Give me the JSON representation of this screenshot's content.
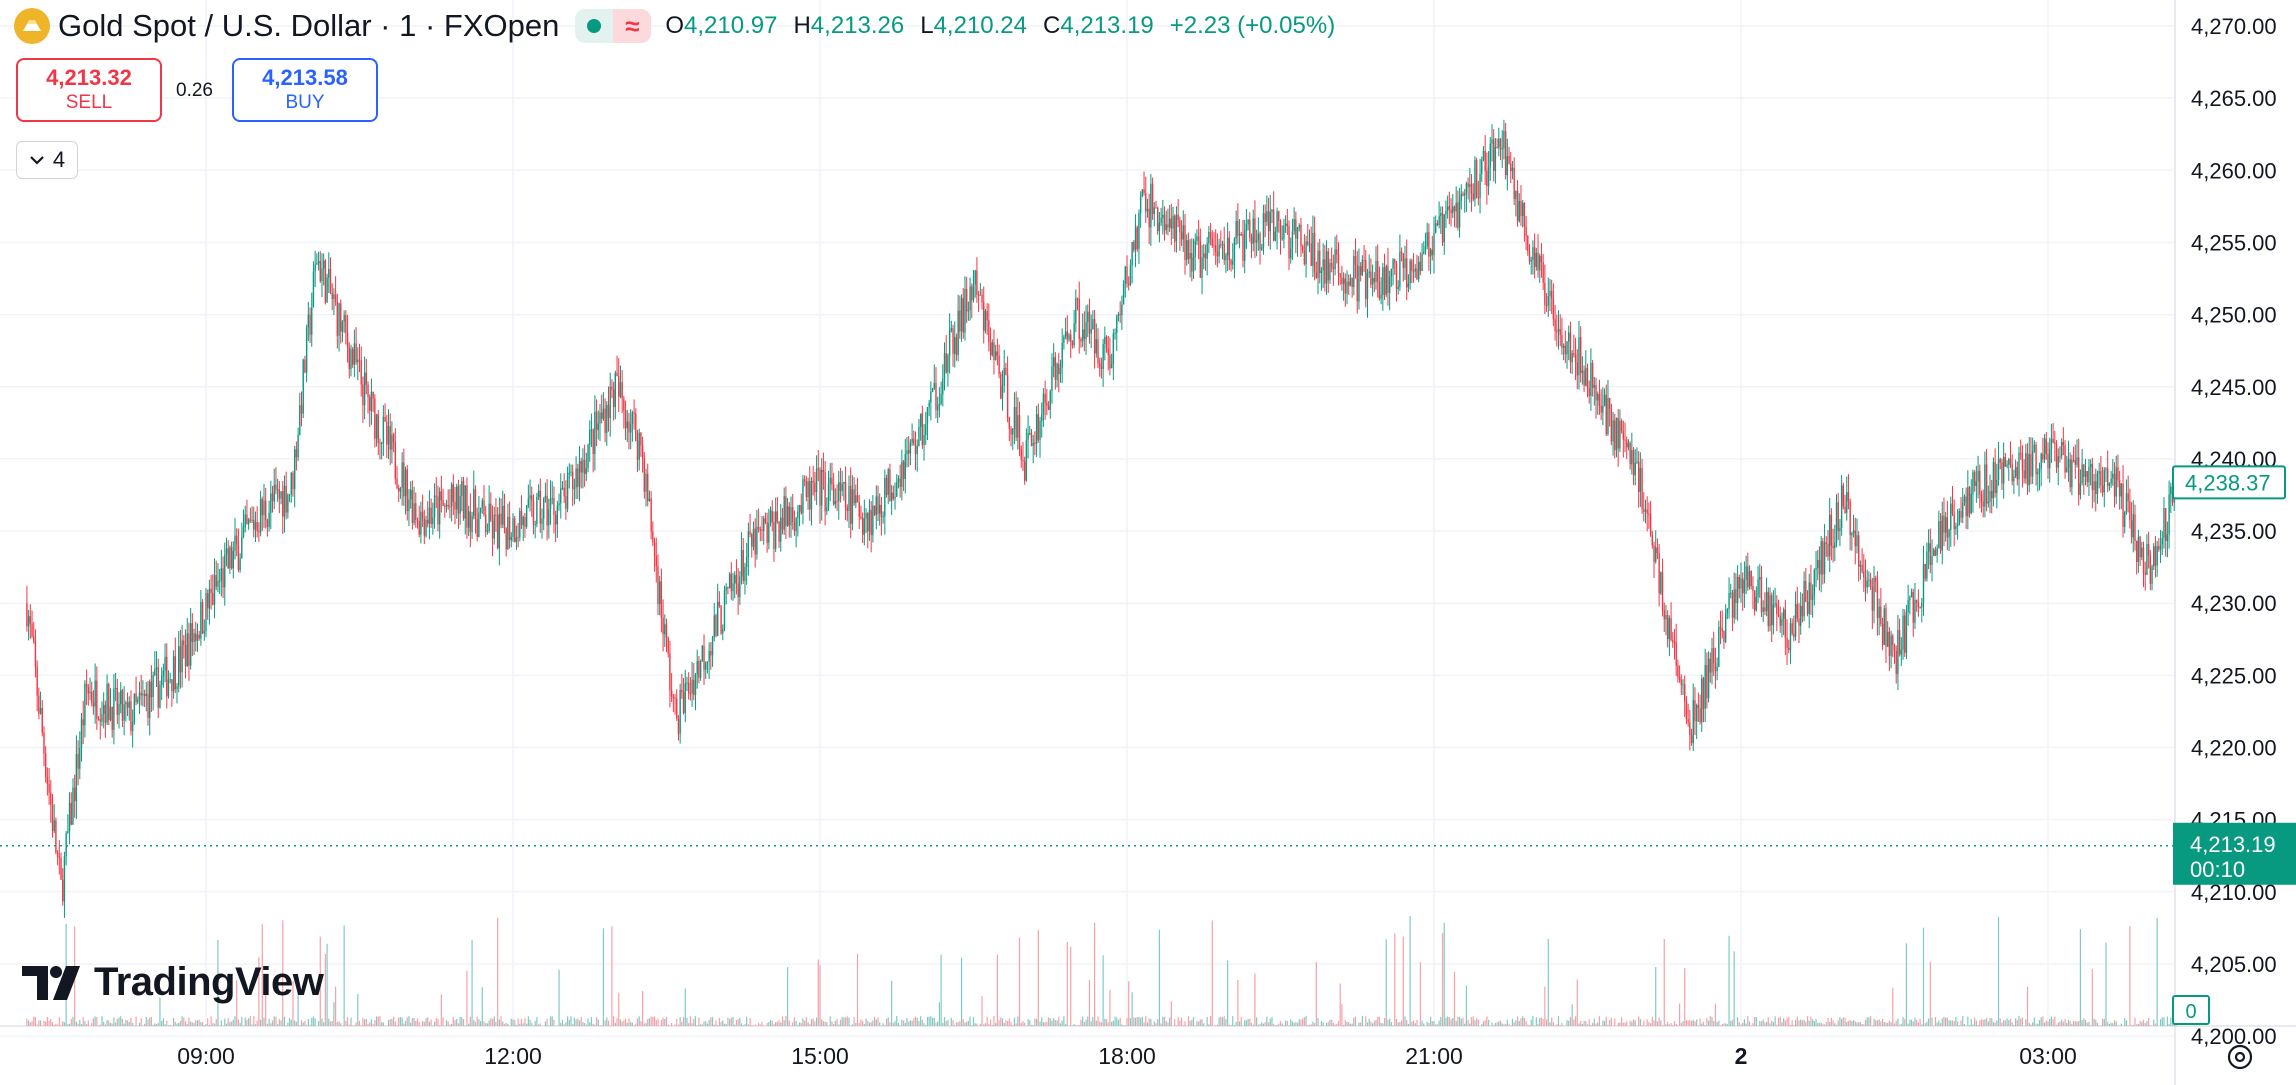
{
  "header": {
    "symbol_title": "Gold Spot / U.S. Dollar · 1 · FXOpen",
    "ohlc": [
      {
        "label": "O",
        "value": "4,210.97"
      },
      {
        "label": "H",
        "value": "4,213.26"
      },
      {
        "label": "L",
        "value": "4,210.24"
      },
      {
        "label": "C",
        "value": "4,213.19"
      }
    ],
    "change": "+2.23 (+0.05%)"
  },
  "trade": {
    "sell_price": "4,213.32",
    "sell_label": "SELL",
    "spread": "0.26",
    "buy_price": "4,213.58",
    "buy_label": "BUY"
  },
  "indicators_count": "4",
  "brand": "TradingView",
  "price_tags": {
    "current": "4,213.19",
    "countdown": "00:10",
    "crosshair": "4,238.37",
    "volume": "0"
  },
  "colors": {
    "up": "#089981",
    "down": "#f23645",
    "volume_up": "#80cbc4",
    "volume_down": "#f7a1a7",
    "grid": "#f0f3fa",
    "axis_text": "#131722"
  },
  "chart_data": {
    "type": "candlestick",
    "title": "Gold Spot / U.S. Dollar · 1 · FXOpen",
    "y_axis": {
      "ticks": [
        "4,200.00",
        "4,205.00",
        "4,210.00",
        "4,215.00",
        "4,220.00",
        "4,225.00",
        "4,230.00",
        "4,235.00",
        "4,240.00",
        "4,245.00",
        "4,250.00",
        "4,255.00",
        "4,260.00",
        "4,265.00",
        "4,270.00"
      ],
      "range": [
        4200,
        4270
      ]
    },
    "x_axis": {
      "ticks": [
        "09:00",
        "12:00",
        "15:00",
        "18:00",
        "21:00",
        "2",
        "03:00"
      ]
    },
    "grid": true,
    "approx_path": {
      "x": [
        "07:15",
        "07:35",
        "07:50",
        "08:15",
        "08:45",
        "09:10",
        "09:30",
        "09:50",
        "10:05",
        "10:35",
        "11:05",
        "11:30",
        "11:50",
        "12:30",
        "13:00",
        "13:15",
        "13:35",
        "14:20",
        "15:00",
        "15:30",
        "16:00",
        "16:30",
        "17:00",
        "17:30",
        "17:50",
        "18:10",
        "18:40",
        "19:30",
        "20:00",
        "20:30",
        "21:00",
        "21:40",
        "22:00",
        "22:20",
        "23:00",
        "23:30",
        "00:00",
        "00:30",
        "01:00",
        "01:30",
        "02:00",
        "02:30",
        "03:00",
        "03:40",
        "04:00",
        "04:15"
      ],
      "close": [
        4230,
        4210,
        4224,
        4222,
        4226,
        4232,
        4236,
        4238,
        4254,
        4244,
        4236,
        4237,
        4235,
        4237,
        4245,
        4241,
        4222,
        4234,
        4238,
        4236,
        4242,
        4252,
        4240,
        4250,
        4247,
        4258,
        4254,
        4256,
        4253,
        4252,
        4255,
        4262,
        4253,
        4248,
        4239,
        4221,
        4232,
        4228,
        4237,
        4226,
        4236,
        4239,
        4240,
        4238,
        4232,
        4238.37
      ]
    },
    "last_close": 4213.19
  }
}
